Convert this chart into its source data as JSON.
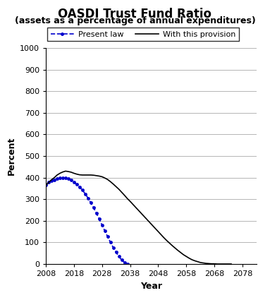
{
  "title_line1": "OASDI Trust Fund Ratio",
  "title_line2": "(assets as a percentage of annual expenditures)",
  "xlabel": "Year",
  "ylabel": "Percent",
  "ylim": [
    0,
    1000
  ],
  "xlim": [
    2008,
    2083
  ],
  "yticks": [
    0,
    100,
    200,
    300,
    400,
    500,
    600,
    700,
    800,
    900,
    1000
  ],
  "xticks": [
    2008,
    2018,
    2028,
    2038,
    2048,
    2058,
    2068,
    2078
  ],
  "legend_labels": [
    "Present law",
    "With this provision"
  ],
  "present_law": {
    "years": [
      2008,
      2009,
      2010,
      2011,
      2012,
      2013,
      2014,
      2015,
      2016,
      2017,
      2018,
      2019,
      2020,
      2021,
      2022,
      2023,
      2024,
      2025,
      2026,
      2027,
      2028,
      2029,
      2030,
      2031,
      2032,
      2033,
      2034,
      2035,
      2036,
      2037
    ],
    "values": [
      365,
      378,
      386,
      390,
      394,
      398,
      400,
      399,
      395,
      388,
      378,
      368,
      356,
      342,
      325,
      305,
      283,
      260,
      235,
      208,
      180,
      153,
      126,
      100,
      76,
      54,
      35,
      18,
      7,
      0
    ],
    "color": "#0000CC",
    "linestyle": "dashed",
    "linewidth": 1.2,
    "marker": ".",
    "markersize": 5
  },
  "provision": {
    "years": [
      2008,
      2009,
      2010,
      2011,
      2012,
      2013,
      2014,
      2015,
      2016,
      2017,
      2018,
      2019,
      2020,
      2021,
      2022,
      2023,
      2024,
      2025,
      2026,
      2027,
      2028,
      2029,
      2030,
      2031,
      2032,
      2033,
      2034,
      2035,
      2036,
      2037,
      2038,
      2039,
      2040,
      2041,
      2042,
      2043,
      2044,
      2045,
      2046,
      2047,
      2048,
      2049,
      2050,
      2051,
      2052,
      2053,
      2054,
      2055,
      2056,
      2057,
      2058,
      2059,
      2060,
      2061,
      2062,
      2063,
      2064,
      2065,
      2066,
      2067,
      2068,
      2069,
      2070,
      2071,
      2072,
      2073,
      2074
    ],
    "values": [
      365,
      378,
      390,
      400,
      412,
      420,
      426,
      430,
      428,
      425,
      420,
      416,
      413,
      412,
      412,
      412,
      412,
      411,
      409,
      407,
      404,
      398,
      391,
      381,
      370,
      358,
      346,
      332,
      318,
      303,
      290,
      276,
      262,
      248,
      234,
      220,
      206,
      192,
      178,
      164,
      150,
      136,
      122,
      109,
      97,
      85,
      74,
      63,
      53,
      43,
      35,
      27,
      20,
      15,
      11,
      7,
      5,
      3,
      2,
      1,
      1,
      0,
      0,
      0,
      0,
      0,
      0
    ],
    "color": "#000000",
    "linestyle": "solid",
    "linewidth": 1.2
  },
  "background_color": "#FFFFFF",
  "grid_color": "#999999",
  "title_fontsize": 12,
  "subtitle_fontsize": 9,
  "axis_label_fontsize": 9,
  "tick_fontsize": 8,
  "legend_fontsize": 8
}
